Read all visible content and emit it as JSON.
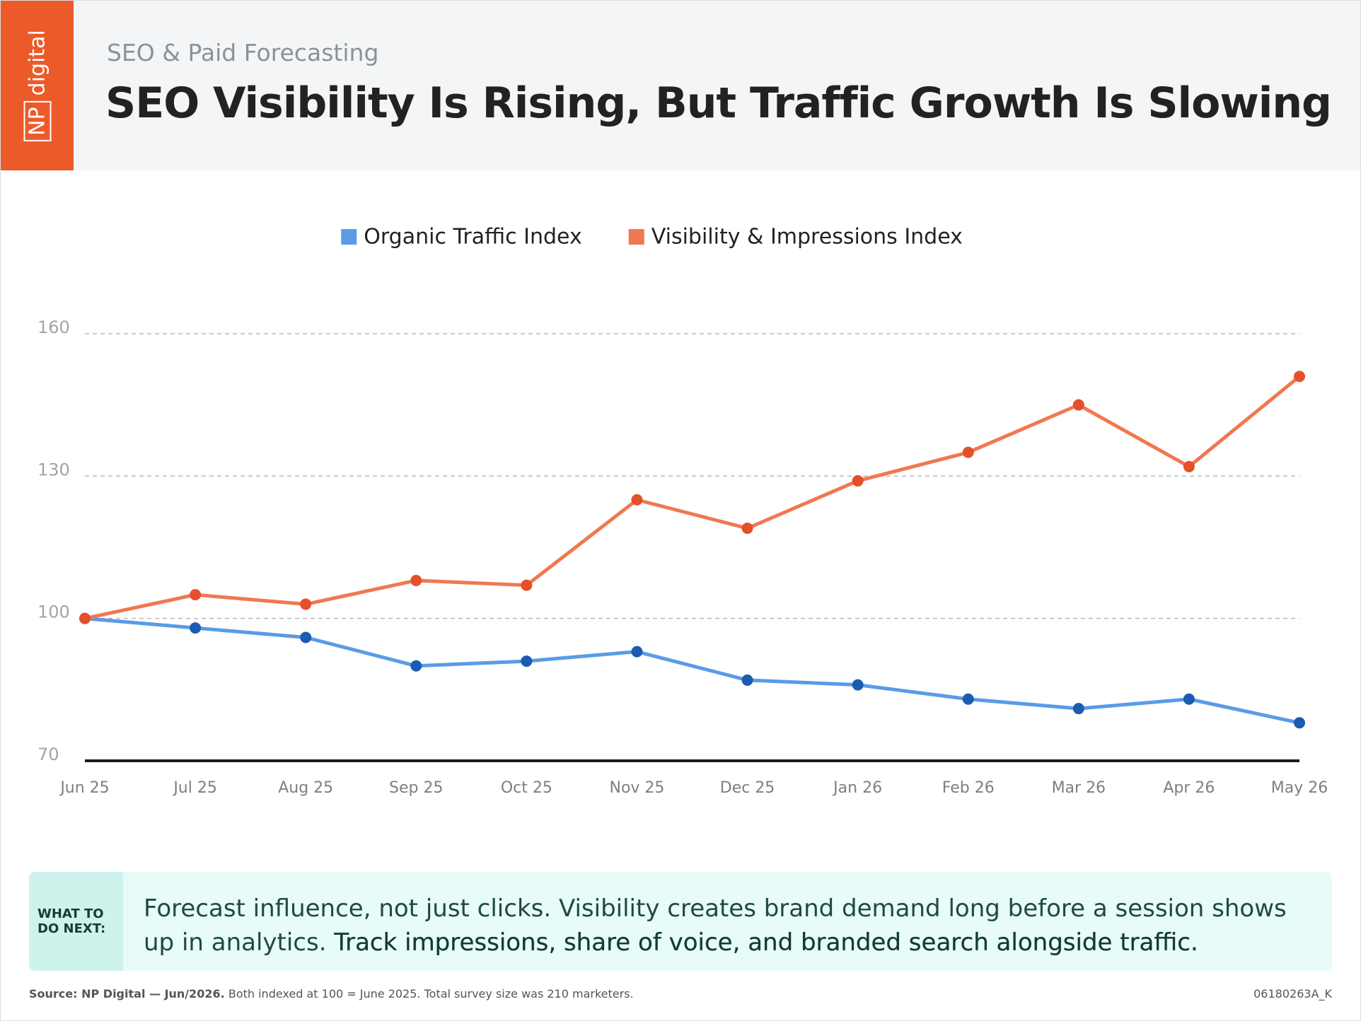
{
  "header": {
    "logo_np": "NP",
    "logo_digital": "digital",
    "subtitle": "SEO & Paid Forecasting",
    "title": "SEO Visibility Is Rising, But Traffic Growth Is Slowing"
  },
  "chart_data": {
    "type": "line",
    "categories": [
      "Jun 25",
      "Jul 25",
      "Aug 25",
      "Sep 25",
      "Oct 25",
      "Nov 25",
      "Dec 25",
      "Jan 26",
      "Feb 26",
      "Mar 26",
      "Apr 26",
      "May 26"
    ],
    "series": [
      {
        "name": "Organic Traffic Index",
        "color": "#5a9be6",
        "marker_color": "#1b5cb0",
        "values": [
          100,
          98,
          96,
          90,
          91,
          93,
          87,
          86,
          83,
          81,
          83,
          78
        ]
      },
      {
        "name": "Visibility & Impressions Index",
        "color": "#f07850",
        "marker_color": "#e4502a",
        "values": [
          100,
          105,
          103,
          108,
          107,
          125,
          119,
          129,
          135,
          145,
          132,
          151
        ]
      }
    ],
    "ylim": [
      70,
      160
    ],
    "yticks": [
      70,
      100,
      130,
      160
    ],
    "grid": true,
    "legend": "top"
  },
  "callout": {
    "label": "WHAT TO DO NEXT:",
    "text": "Forecast influence, not just clicks. Visibility creates brand demand long before a session shows up in analytics.",
    "highlight": "Track impressions, share of voice, and branded search alongside traffic."
  },
  "footer": {
    "source": "Source: NP Digital — Jun/2026.",
    "note": "Both indexed at 100 = June 2025. Total survey size was 210 marketers.",
    "code": "06180263A_K"
  }
}
